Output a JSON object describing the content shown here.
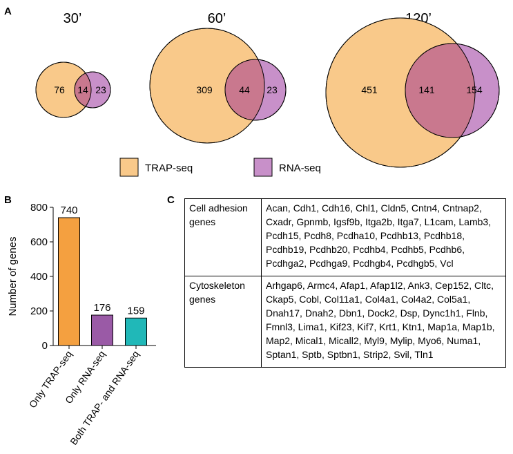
{
  "panels": {
    "a": "A",
    "b": "B",
    "c": "C"
  },
  "venn": {
    "timepoints": [
      {
        "label": "30’",
        "trap_only": 76,
        "overlap": 14,
        "rna_only": 23
      },
      {
        "label": "60’",
        "trap_only": 309,
        "overlap": 44,
        "rna_only": 23
      },
      {
        "label": "120’",
        "trap_only": 451,
        "overlap": 141,
        "rna_only": 154
      }
    ],
    "legend": [
      {
        "label": "TRAP-seq",
        "color": "#f9c98a"
      },
      {
        "label": "RNA-seq",
        "color": "#c890c9"
      }
    ]
  },
  "chart_data": {
    "type": "bar",
    "categories": [
      "Only TRAP-seq",
      "Only RNA-seq",
      "Both TRAP- and RNA-seq"
    ],
    "values": [
      740,
      176,
      159
    ],
    "colors": [
      "#f4a040",
      "#9a5aa6",
      "#20b8b8"
    ],
    "ylabel": "Number of genes",
    "ylim": [
      0,
      800
    ],
    "yticks": [
      0,
      200,
      400,
      600,
      800
    ]
  },
  "gene_table": {
    "rows": [
      {
        "category": "Cell adhesion genes",
        "genes": "Acan, Cdh1, Cdh16, Chl1, Cldn5, Cntn4, Cntnap2, Cxadr, Gpnmb, Igsf9b, Itga2b, Itga7, L1cam, Lamb3, Pcdh15, Pcdh8, Pcdha10, Pcdhb13, Pcdhb18, Pcdhb19, Pcdhb20, Pcdhb4, Pcdhb5, Pcdhb6, Pcdhga2, Pcdhga9, Pcdhgb4, Pcdhgb5, Vcl"
      },
      {
        "category": "Cytoskeleton genes",
        "genes": "Arhgap6, Armc4, Afap1, Afap1l2, Ank3, Cep152, Cltc, Ckap5, Cobl, Col11a1, Col4a1, Col4a2, Col5a1, Dnah17, Dnah2, Dbn1, Dock2, Dsp, Dync1h1, Flnb, Fmnl3, Lima1, Kif23, Kif7, Krt1, Ktn1, Map1a, Map1b, Map2, Mical1, Micall2, Myl9, Mylip, Myo6, Numa1, Sptan1, Sptb, Sptbn1, Strip2, Svil, Tln1"
      }
    ]
  }
}
